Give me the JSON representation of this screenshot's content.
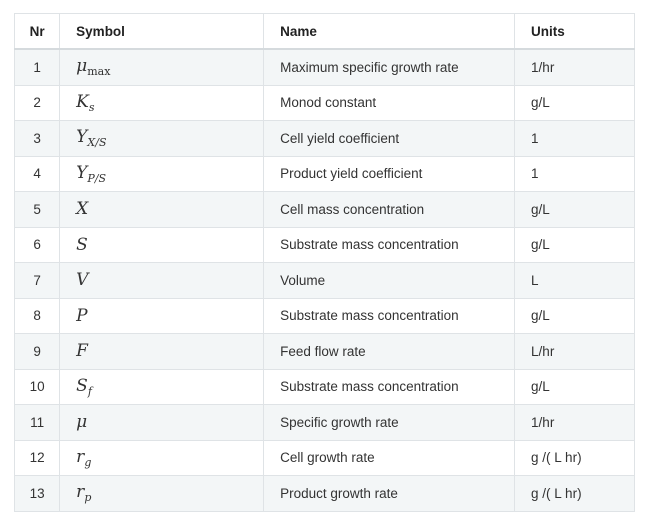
{
  "table": {
    "headers": {
      "nr": "Nr",
      "symbol": "Symbol",
      "name": "Name",
      "units": "Units"
    },
    "rows": [
      {
        "nr": "1",
        "symbol_main": "μ",
        "symbol_sub": "max",
        "sub_upright": true,
        "name": "Maximum specific growth rate",
        "units": "1/hr"
      },
      {
        "nr": "2",
        "symbol_main": "K",
        "symbol_sub": "s",
        "sub_upright": false,
        "name": "Monod constant",
        "units": "g/L"
      },
      {
        "nr": "3",
        "symbol_main": "Y",
        "symbol_sub": "X/S",
        "sub_upright": false,
        "name": "Cell yield coefficient",
        "units": "1"
      },
      {
        "nr": "4",
        "symbol_main": "Y",
        "symbol_sub": "P/S",
        "sub_upright": false,
        "name": "Product yield coefficient",
        "units": "1"
      },
      {
        "nr": "5",
        "symbol_main": "X",
        "symbol_sub": "",
        "sub_upright": false,
        "name": "Cell mass concentration",
        "units": "g/L"
      },
      {
        "nr": "6",
        "symbol_main": "S",
        "symbol_sub": "",
        "sub_upright": false,
        "name": "Substrate mass concentration",
        "units": "g/L"
      },
      {
        "nr": "7",
        "symbol_main": "V",
        "symbol_sub": "",
        "sub_upright": false,
        "name": "Volume",
        "units": "L"
      },
      {
        "nr": "8",
        "symbol_main": "P",
        "symbol_sub": "",
        "sub_upright": false,
        "name": "Substrate mass concentration",
        "units": "g/L"
      },
      {
        "nr": "9",
        "symbol_main": "F",
        "symbol_sub": "",
        "sub_upright": false,
        "name": "Feed flow rate",
        "units": "L/hr"
      },
      {
        "nr": "10",
        "symbol_main": "S",
        "symbol_sub": "f",
        "sub_upright": false,
        "name": "Substrate mass concentration",
        "units": "g/L"
      },
      {
        "nr": "11",
        "symbol_main": "μ",
        "symbol_sub": "",
        "sub_upright": false,
        "name": "Specific growth rate",
        "units": "1/hr"
      },
      {
        "nr": "12",
        "symbol_main": "r",
        "symbol_sub": "g",
        "sub_upright": false,
        "name": "Cell growth rate",
        "units": "g /( L hr)"
      },
      {
        "nr": "13",
        "symbol_main": "r",
        "symbol_sub": "p",
        "sub_upright": false,
        "name": "Product growth rate",
        "units": "g /( L hr)"
      }
    ]
  }
}
